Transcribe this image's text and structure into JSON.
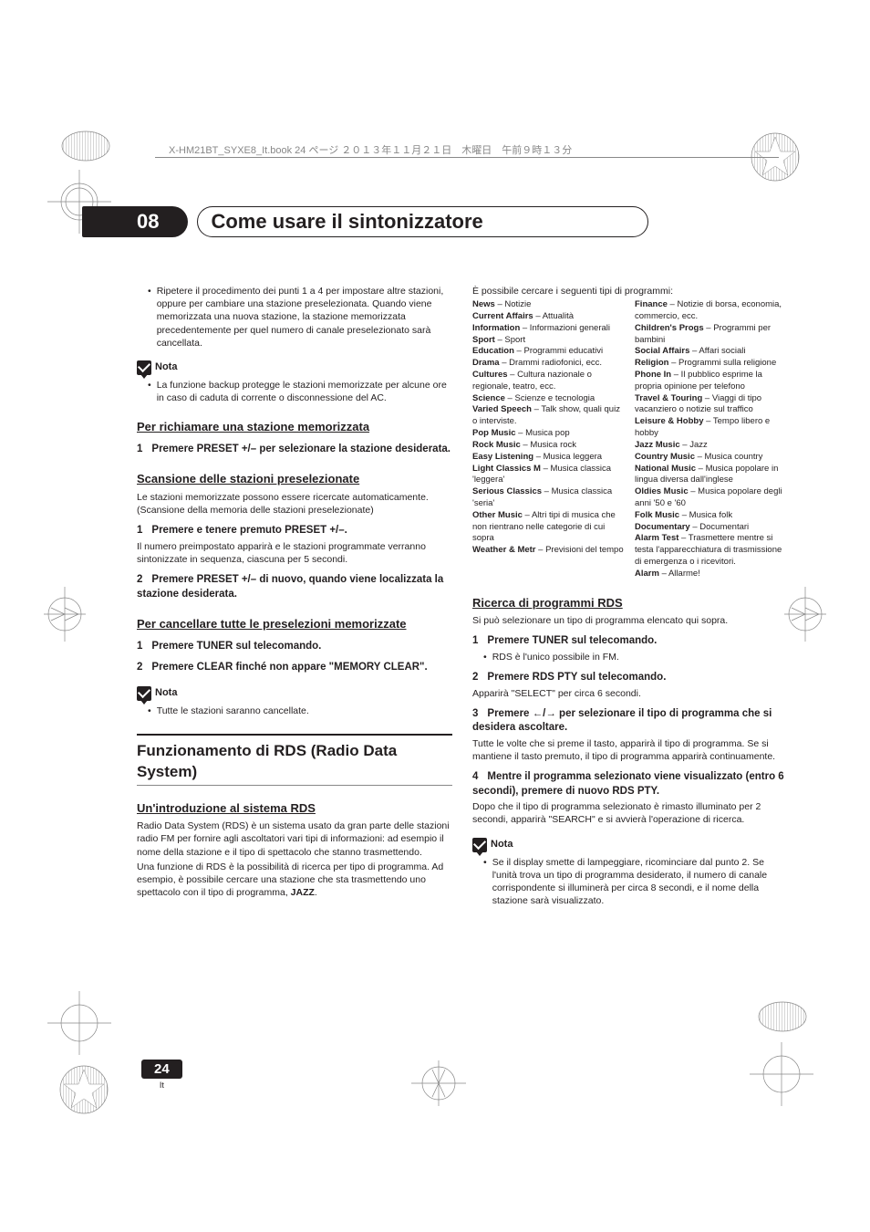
{
  "header_line": "X-HM21BT_SYXE8_It.book  24 ページ  ２０１３年１１月２１日　木曜日　午前９時１３分",
  "chapter": {
    "num": "08",
    "title": "Come usare il sintonizzatore"
  },
  "left": {
    "intro_bullet": "Ripetere il procedimento dei punti 1 a 4 per impostare altre stazioni, oppure per cambiare una stazione preselezionata. Quando viene memorizzata una nuova stazione, la stazione memorizzata precedentemente per quel numero di canale preselezionato sarà cancellata.",
    "nota_label": "Nota",
    "nota1_bullet": "La funzione backup protegge le stazioni memorizzate per alcune ore in caso di caduta di corrente o disconnessione del AC.",
    "sec1_title": "Per richiamare una stazione memorizzata",
    "sec1_step1": "Premere PRESET +/– per selezionare la stazione desiderata.",
    "sec2_title": "Scansione delle stazioni preselezionate",
    "sec2_intro": "Le stazioni memorizzate possono essere ricercate automaticamente. (Scansione della memoria delle stazioni preselezionate)",
    "sec2_step1": "Premere e tenere premuto PRESET +/–.",
    "sec2_step1_body": "Il numero preimpostato apparirà e le stazioni programmate verranno sintonizzate in sequenza, ciascuna per 5 secondi.",
    "sec2_step2": "Premere PRESET +/– di nuovo, quando viene localizzata la stazione desiderata.",
    "sec3_title": "Per cancellare tutte le preselezioni memorizzate",
    "sec3_step1": "Premere TUNER sul telecomando.",
    "sec3_step2": "Premere CLEAR finché non appare \"MEMORY CLEAR\".",
    "nota2_bullet": "Tutte le stazioni saranno cancellate.",
    "major_title": "Funzionamento di RDS (Radio Data System)",
    "sec4_title": "Un'introduzione al sistema RDS",
    "sec4_p1": "Radio Data System (RDS) è un sistema usato da gran parte delle stazioni radio FM per fornire agli ascoltatori vari tipi di informazioni: ad esempio il nome della stazione e il tipo di spettacolo che stanno trasmettendo.",
    "sec4_p2_a": "Una funzione di RDS è la possibilità di ricerca per tipo di programma. Ad esempio, è possibile cercare una stazione che sta trasmettendo uno spettacolo con il tipo di programma, ",
    "sec4_p2_b": "JAZZ",
    "sec4_p2_c": "."
  },
  "right": {
    "intro": "È possibile cercare i seguenti tipi di programmi:",
    "prog_left": [
      {
        "t": "News",
        "d": " – Notizie"
      },
      {
        "t": "Current Affairs",
        "d": " – Attualità"
      },
      {
        "t": "Information",
        "d": " – Informazioni generali"
      },
      {
        "t": "Sport",
        "d": " – Sport"
      },
      {
        "t": "Education",
        "d": " – Programmi educativi"
      },
      {
        "t": "Drama",
        "d": " – Drammi radiofonici, ecc."
      },
      {
        "t": "Cultures",
        "d": " – Cultura nazionale o regionale, teatro, ecc."
      },
      {
        "t": "Science",
        "d": " – Scienze e tecnologia"
      },
      {
        "t": "Varied Speech",
        "d": " – Talk show, quali quiz o interviste."
      },
      {
        "t": "Pop Music",
        "d": " – Musica pop"
      },
      {
        "t": "Rock Music",
        "d": " – Musica rock"
      },
      {
        "t": "Easy Listening",
        "d": " – Musica leggera"
      },
      {
        "t": "Light Classics M",
        "d": " – Musica classica 'leggera'"
      },
      {
        "t": "Serious Classics",
        "d": " – Musica classica 'seria'"
      },
      {
        "t": "Other Music",
        "d": " – Altri tipi di musica che non rientrano nelle categorie di cui sopra"
      },
      {
        "t": "Weather & Metr",
        "d": " – Previsioni del tempo"
      }
    ],
    "prog_right": [
      {
        "t": "Finance",
        "d": " – Notizie di borsa, economia, commercio, ecc."
      },
      {
        "t": "Children's Progs",
        "d": " – Programmi per bambini"
      },
      {
        "t": "Social Affairs",
        "d": " – Affari sociali"
      },
      {
        "t": "Religion",
        "d": " – Programmi sulla religione"
      },
      {
        "t": "Phone In",
        "d": " – Il pubblico esprime la propria opinione per telefono"
      },
      {
        "t": "Travel & Touring",
        "d": " – Viaggi di tipo vacanziero o notizie sul traffico"
      },
      {
        "t": "Leisure & Hobby",
        "d": " – Tempo libero e hobby"
      },
      {
        "t": "Jazz Music",
        "d": " – Jazz"
      },
      {
        "t": "Country Music",
        "d": " – Musica country"
      },
      {
        "t": "National Music",
        "d": " – Musica popolare in lingua diversa dall'inglese"
      },
      {
        "t": "Oldies Music",
        "d": " – Musica popolare degli anni '50 e '60"
      },
      {
        "t": "Folk Music",
        "d": " – Musica folk"
      },
      {
        "t": "Documentary",
        "d": " – Documentari"
      },
      {
        "t": "Alarm Test",
        "d": " – Trasmettere mentre si testa l'apparecchiatura di trasmissione di emergenza o i ricevitori."
      },
      {
        "t": "Alarm",
        "d": " – Allarme!"
      }
    ],
    "sec5_title": "Ricerca di programmi RDS",
    "sec5_intro": "Si può selezionare un tipo di programma elencato qui sopra.",
    "sec5_step1": "Premere TUNER sul telecomando.",
    "sec5_step1_bullet": "RDS è l'unico possibile in FM.",
    "sec5_step2": "Premere RDS PTY sul telecomando.",
    "sec5_step2_body": "Apparirà \"SELECT\" per circa 6 secondi.",
    "sec5_step3_a": "Premere ",
    "sec5_step3_b": " per selezionare il tipo di programma che si desidera ascoltare.",
    "sec5_step3_body": "Tutte le volte che si preme il tasto, apparirà il tipo di programma. Se si mantiene il tasto premuto, il tipo di programma apparirà continuamente.",
    "sec5_step4": "Mentre il programma selezionato viene visualizzato (entro 6 secondi), premere di nuovo RDS PTY.",
    "sec5_step4_body": "Dopo che il tipo di programma selezionato è rimasto illuminato per 2 secondi, apparirà \"SEARCH\" e si avvierà l'operazione di ricerca.",
    "nota3_bullet": "Se il display smette di lampeggiare, ricominciare dal punto 2. Se l'unità trova un tipo di programma desiderato, il numero di canale corrispondente si illuminerà per circa 8 secondi, e il nome della stazione sarà visualizzato."
  },
  "page": {
    "num": "24",
    "lang": "It"
  }
}
